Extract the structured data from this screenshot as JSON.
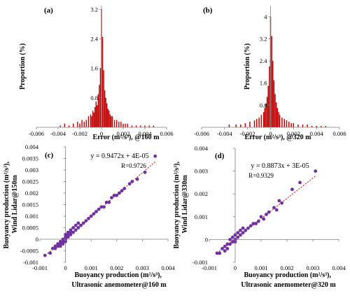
{
  "colors": {
    "histogram": "#c00000",
    "scatter_point": "#7030a0",
    "fit_line": "#c00000",
    "axis": "#808080",
    "text": "#000000"
  },
  "chart_data": [
    {
      "panel": "(a)",
      "type": "bar",
      "xlabel": "Error (m²/s³), @160 m",
      "ylabel": "Proportion (%)",
      "xlim": [
        -0.006,
        0.006
      ],
      "ylim": [
        0,
        3.3
      ],
      "xticks": [
        "-0.006",
        "-0.004",
        "-0.002",
        "0",
        "0.002",
        "0.004",
        "0.006"
      ],
      "yticks": [
        "0.8",
        "1.6",
        "2.4",
        "3.2"
      ],
      "grid": false,
      "x": [
        -0.0038,
        -0.0034,
        -0.003,
        -0.0026,
        -0.0022,
        -0.002,
        -0.0018,
        -0.0016,
        -0.0014,
        -0.0012,
        -0.001,
        -0.0009,
        -0.0008,
        -0.0007,
        -0.0006,
        -0.0005,
        -0.0004,
        -0.0003,
        -0.0002,
        -0.0001,
        0,
        0.0001,
        0.0002,
        0.0003,
        0.0004,
        0.0005,
        0.0006,
        0.0007,
        0.0008,
        0.0009,
        0.001,
        0.0012,
        0.0014,
        0.0016,
        0.0018,
        0.002,
        0.0022,
        0.0024,
        0.0028,
        0.0032,
        0.0036,
        0.004,
        0.0044,
        0.0048
      ],
      "values": [
        0.05,
        0.1,
        0.05,
        0.1,
        0.15,
        0.1,
        0.2,
        0.15,
        0.2,
        0.3,
        0.35,
        0.3,
        0.45,
        0.4,
        0.55,
        0.7,
        0.6,
        0.9,
        1.15,
        1.6,
        3.2,
        2.45,
        1.55,
        1.0,
        0.8,
        0.65,
        0.5,
        0.45,
        0.35,
        0.3,
        0.3,
        0.2,
        0.2,
        0.15,
        0.15,
        0.1,
        0.1,
        0.1,
        0.05,
        0.05,
        0.05,
        0.05,
        0.05,
        0.05
      ]
    },
    {
      "panel": "(b)",
      "type": "bar",
      "xlabel": "Error (m²/s³), @320 m",
      "ylabel": "Proportion (%)",
      "xlim": [
        -0.006,
        0.006
      ],
      "ylim": [
        0,
        4.4
      ],
      "xticks": [
        "-0.006",
        "-0.004",
        "-0.002",
        "0",
        "0.002",
        "0.004",
        "0.006"
      ],
      "yticks": [
        "0.8",
        "1.6",
        "2.4",
        "3.2",
        "4"
      ],
      "grid": false,
      "x": [
        -0.0036,
        -0.003,
        -0.0026,
        -0.0022,
        -0.0018,
        -0.0014,
        -0.0012,
        -0.001,
        -0.0008,
        -0.0006,
        -0.0005,
        -0.0004,
        -0.0003,
        -0.0002,
        -0.0001,
        0,
        0.0001,
        0.0002,
        0.0003,
        0.0004,
        0.0005,
        0.0006,
        0.0007,
        0.0008,
        0.001,
        0.0012,
        0.0014,
        0.0016,
        0.0018,
        0.002,
        0.0024,
        0.0028,
        0.0032,
        0.0036,
        0.004,
        0.0044,
        0.0048
      ],
      "values": [
        0.1,
        0.1,
        0.1,
        0.15,
        0.2,
        0.25,
        0.3,
        0.35,
        0.45,
        0.55,
        0.7,
        0.85,
        1.1,
        1.5,
        2.2,
        4.0,
        3.3,
        2.4,
        1.7,
        1.2,
        0.9,
        0.7,
        0.55,
        0.45,
        0.35,
        0.3,
        0.25,
        0.2,
        0.15,
        0.15,
        0.1,
        0.1,
        0.1,
        0.05,
        0.05,
        0.05,
        0.05
      ]
    },
    {
      "panel": "(c)",
      "type": "scatter",
      "xlabel_lines": [
        "Buoyancy production (m²/s³),",
        "Ultrasonic anemometer@160 m"
      ],
      "ylabel_lines": [
        "Buoyancy production (m²/s³),",
        "Wind Lidar@150m"
      ],
      "xlim": [
        -0.001,
        0.004
      ],
      "ylim": [
        -0.001,
        0.004
      ],
      "xticks": [
        "-0.001",
        "0",
        "0.001",
        "0.002",
        "0.003",
        "0.004"
      ],
      "yticks": [
        "-0.001",
        "-0.0005",
        "0",
        "0.0005",
        "0.001",
        "0.0015",
        "0.002",
        "0.0025",
        "0.003",
        "0.0035",
        "0.004"
      ],
      "equation": "y = 0.9472x + 4E-05",
      "r_label": "R=0.9726",
      "fit": {
        "slope": 0.9472,
        "intercept": 4e-05
      },
      "x": [
        -0.0008,
        -0.0006,
        -0.0005,
        -0.0004,
        -0.0004,
        -0.0003,
        -0.0003,
        -0.0002,
        -0.0002,
        -0.0002,
        -0.0001,
        -0.0001,
        -0.0001,
        0,
        0,
        0,
        0,
        0.0001,
        0.0001,
        0.0001,
        0.0002,
        0.0002,
        0.0002,
        0.0003,
        0.0003,
        0.0004,
        0.0004,
        0.0005,
        0.0005,
        0.0006,
        0.0007,
        0.0008,
        0.0009,
        0.001,
        0.0011,
        0.0012,
        0.0013,
        0.0014,
        0.0015,
        0.0016,
        0.0017,
        0.0018,
        0.0019,
        0.002,
        0.0021,
        0.0022,
        0.0023,
        0.0025,
        0.0026,
        0.0028,
        0.0031,
        0.0035
      ],
      "y": [
        -0.0007,
        -0.0006,
        -0.0004,
        -0.0004,
        -0.0003,
        -0.0003,
        -0.0002,
        -0.0002,
        -0.0001,
        -0.0003,
        -0.0001,
        0,
        -0.0002,
        0,
        0.0001,
        -0.0001,
        0.0002,
        0.0001,
        0.0002,
        0.0003,
        0.0002,
        0.0003,
        0.0004,
        0.0003,
        0.0005,
        0.0004,
        0.0006,
        0.0005,
        0.0007,
        0.0006,
        0.0007,
        0.0008,
        0.0009,
        0.001,
        0.0011,
        0.0012,
        0.0013,
        0.0014,
        0.0014,
        0.0016,
        0.0016,
        0.0018,
        0.0019,
        0.0019,
        0.002,
        0.0021,
        0.0022,
        0.0024,
        0.0025,
        0.0026,
        0.0029,
        0.0036
      ]
    },
    {
      "panel": "(d)",
      "type": "scatter",
      "xlabel_lines": [
        "Buoyancy production (m²/s³),",
        "Ultrasonic anemometer@320 m"
      ],
      "ylabel_lines": [
        "Buoyancy production (m²/s³),",
        "Wind Lidar@330m"
      ],
      "xlim": [
        -0.001,
        0.004
      ],
      "ylim": [
        -0.001,
        0.004
      ],
      "xticks": [
        "-0.001",
        "0",
        "0.001",
        "0.002",
        "0.003",
        "0.004"
      ],
      "yticks": [
        "-0.001",
        "0",
        "0.001",
        "0.002",
        "0.003",
        "0.004"
      ],
      "equation": "y = 0.8873x + 3E-05",
      "r_label": "R=0.9329",
      "fit": {
        "slope": 0.8873,
        "intercept": 3e-05
      },
      "x": [
        -0.0007,
        -0.0006,
        -0.0005,
        -0.0004,
        -0.0004,
        -0.0003,
        -0.0003,
        -0.0002,
        -0.0002,
        -0.0001,
        -0.0001,
        0,
        0,
        0,
        0.0001,
        0.0001,
        0.0002,
        0.0002,
        0.0003,
        0.0003,
        0.0004,
        0.0005,
        0.0006,
        0.0007,
        0.0008,
        0.0009,
        0.001,
        0.0011,
        0.0012,
        0.0013,
        0.0015,
        0.0016,
        0.0017,
        0.0018,
        0.0022,
        0.0025,
        0.0031
      ],
      "y": [
        -0.0006,
        -0.0006,
        -0.0004,
        -0.0003,
        -0.0005,
        -0.0002,
        -0.0004,
        -0.0002,
        0,
        -0.0001,
        0.0001,
        0,
        0.0002,
        -0.0001,
        0.0001,
        0.0003,
        0.0002,
        0.0004,
        0.0003,
        0.0005,
        0.0004,
        0.0005,
        0.0006,
        0.0007,
        0.0007,
        0.0008,
        0.001,
        0.0009,
        0.0011,
        0.0012,
        0.0014,
        0.0013,
        0.0017,
        0.0016,
        0.0022,
        0.0025,
        0.003
      ]
    }
  ]
}
